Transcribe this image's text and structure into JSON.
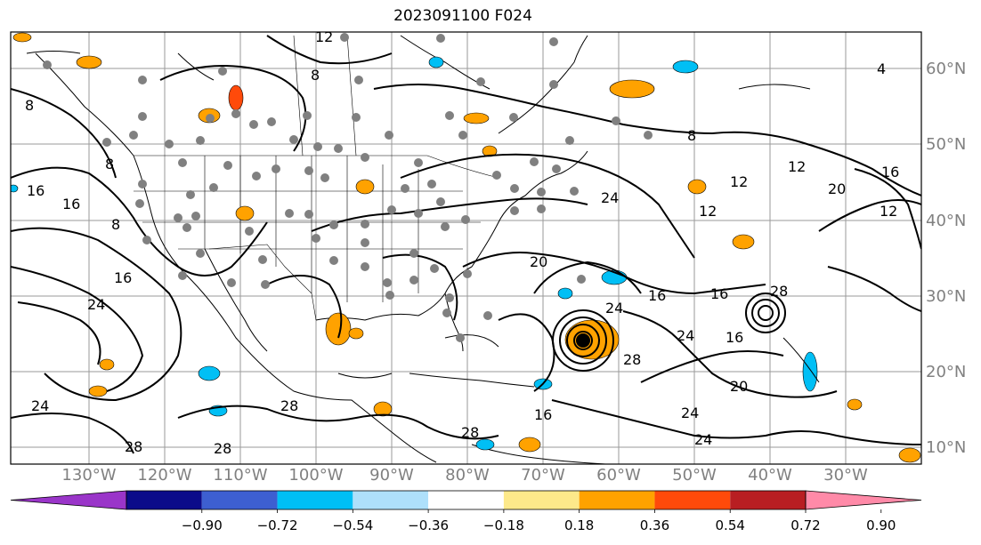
{
  "title": "2023091100 F024",
  "latitude_labels": [
    "60°N",
    "50°N",
    "40°N",
    "30°N",
    "20°N",
    "10°N"
  ],
  "longitude_labels": [
    "130°W",
    "120°W",
    "110°W",
    "100°W",
    "90°W",
    "80°W",
    "70°W",
    "60°W",
    "50°W",
    "40°W",
    "30°W"
  ],
  "contour_labels": [
    "12",
    "8",
    "4",
    "8",
    "16",
    "16",
    "8",
    "8",
    "24",
    "12",
    "16",
    "8",
    "24",
    "12",
    "16",
    "16",
    "12",
    "20",
    "12",
    "16",
    "28",
    "16",
    "24",
    "20",
    "24",
    "28",
    "28",
    "24",
    "24",
    "28",
    "28",
    "16",
    "28",
    "20",
    "24"
  ],
  "colorbar": {
    "ticks": [
      "−0.90",
      "−0.72",
      "−0.54",
      "−0.36",
      "−0.18",
      "0.18",
      "0.36",
      "0.54",
      "0.72",
      "0.90"
    ],
    "colors": [
      "#9a35c9",
      "#0b0b8a",
      "#3d5fd1",
      "#00bff5",
      "#aee0fb",
      "#ffffff",
      "#fde98a",
      "#ffa200",
      "#ff4a0a",
      "#b81e22",
      "#ff8aa8"
    ],
    "extend": "both"
  },
  "colors": {
    "orange": "#ffa200",
    "yellow": "#fde98a",
    "red_orange": "#ff4a0a",
    "cyan": "#00bff5",
    "light_blue": "#aee0fb",
    "blue": "#3d5fd1",
    "station_marker": "#808080",
    "gridline": "#9a9a9a"
  }
}
